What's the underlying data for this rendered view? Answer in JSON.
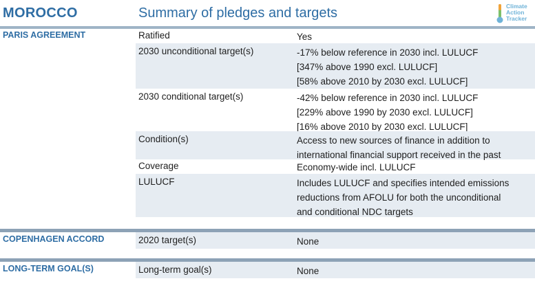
{
  "header": {
    "country": "MOROCCO",
    "subtitle": "Summary of pledges and targets",
    "logo_lines": [
      "Climate",
      "Action",
      "Tracker"
    ]
  },
  "colors": {
    "title_blue": "#2e6da4",
    "row_shade": "#e6ecf2",
    "separator": "#8da2b6",
    "logo_cyan": "#6fb3d8",
    "logo_green": "#7cc06a"
  },
  "sections": [
    {
      "title": "PARIS AGREEMENT",
      "rows": [
        {
          "label": "Ratified",
          "values": [
            "Yes"
          ]
        },
        {
          "label": "2030 unconditional target(s)",
          "values": [
            "-17% below reference in 2030 incl. LULUCF",
            "[347% above 1990 excl. LULUCF]",
            "[58% above 2010 by 2030 excl. LULUCF]"
          ]
        },
        {
          "label": "2030 conditional target(s)",
          "values": [
            "-42% below reference in 2030 incl. LULUCF",
            "[229% above 1990 by 2030 excl. LULUCF]",
            "[16% above 2010 by 2030 excl. LULUCF]"
          ]
        },
        {
          "label": "Condition(s)",
          "values": [
            "Access to new sources of finance in addition to",
            "international financial support received in the past"
          ]
        },
        {
          "label": "Coverage",
          "values": [
            "Economy-wide incl. LULUCF"
          ]
        },
        {
          "label": "LULUCF",
          "values": [
            "Includes LULUCF and specifies intended emissions",
            "reductions from AFOLU for both the unconditional",
            "and conditional NDC targets"
          ]
        }
      ]
    },
    {
      "title": "COPENHAGEN ACCORD",
      "rows": [
        {
          "label": "2020 target(s)",
          "values": [
            "None"
          ]
        }
      ]
    },
    {
      "title": "LONG-TERM GOAL(S)",
      "rows": [
        {
          "label": "Long-term goal(s)",
          "values": [
            "None"
          ]
        }
      ]
    }
  ]
}
